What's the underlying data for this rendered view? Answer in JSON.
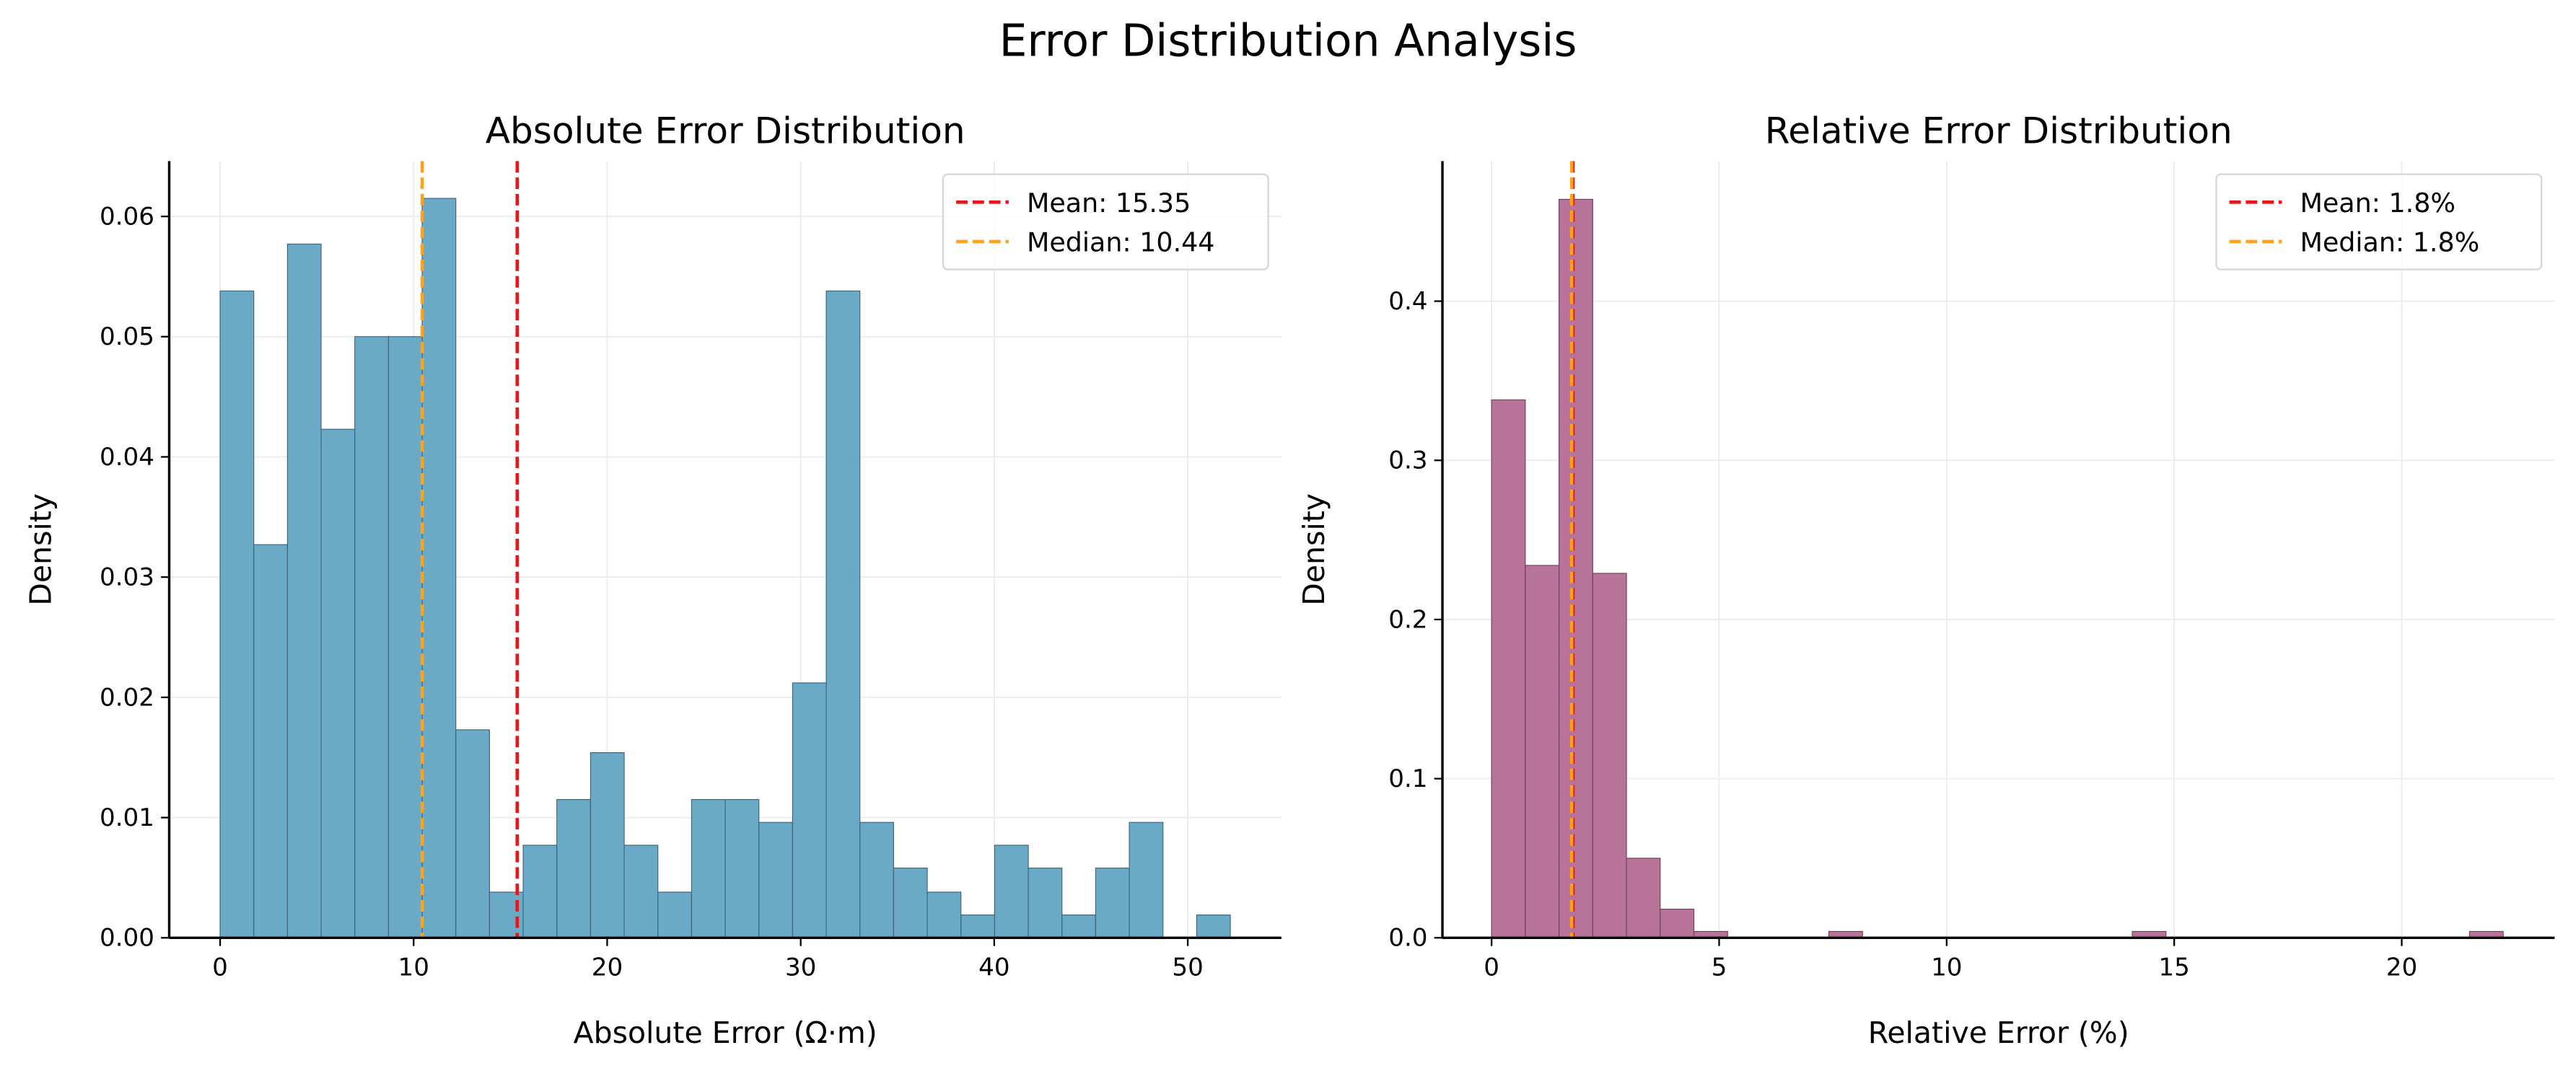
{
  "title": "Error Distribution Analysis",
  "chart_data": [
    {
      "type": "histogram",
      "title": "Absolute Error Distribution",
      "xlabel": "Absolute Error (Ω·m)",
      "ylabel": "Density",
      "bins": [
        0,
        1.74,
        3.48,
        5.22,
        6.96,
        8.7,
        10.44,
        12.18,
        13.92,
        15.66,
        17.4,
        19.14,
        20.88,
        22.62,
        24.36,
        26.1,
        27.84,
        29.58,
        31.32,
        33.06,
        34.8,
        36.54,
        38.28,
        40.02,
        41.76,
        43.5,
        45.24,
        46.98,
        48.72,
        50.46,
        52.2
      ],
      "values": [
        0.0538,
        0.0327,
        0.0577,
        0.0423,
        0.05,
        0.05,
        0.0615,
        0.0173,
        0.0038,
        0.0077,
        0.0115,
        0.0154,
        0.0077,
        0.0038,
        0.0115,
        0.0115,
        0.0096,
        0.0212,
        0.0538,
        0.0096,
        0.0058,
        0.0038,
        0.0019,
        0.0077,
        0.0058,
        0.0019,
        0.0058,
        0.0096,
        0,
        0.0019
      ],
      "color": "#6aaac6",
      "edgecolor": "#3d6478",
      "xlim": [
        -2.63,
        54.84
      ],
      "ylim": [
        0,
        0.0646
      ],
      "xticks": [
        0,
        10,
        20,
        30,
        40,
        50
      ],
      "yticks": [
        {
          "value": 0,
          "label": "0.00"
        },
        0.01,
        0.02,
        0.03,
        0.04,
        0.05,
        0.06
      ],
      "grid": true,
      "legend": "upper right",
      "vlines": [
        {
          "label": "Mean: 15.35",
          "value": 15.35,
          "color": "#e8161b"
        },
        {
          "label": "Median: 10.44",
          "value": 10.44,
          "color": "#ffa21a"
        }
      ]
    },
    {
      "type": "histogram",
      "title": "Relative Error Distribution",
      "xlabel": "Relative Error (%)",
      "ylabel": "Density",
      "bins": [
        0,
        0.741,
        1.482,
        2.223,
        2.964,
        3.705,
        4.446,
        5.187,
        5.928,
        6.669,
        7.41,
        8.151,
        8.892,
        9.633,
        10.374,
        11.115,
        11.856,
        12.597,
        13.338,
        14.079,
        14.82,
        15.561,
        16.302,
        17.043,
        17.784,
        18.525,
        19.266,
        20.007,
        20.748,
        21.489,
        22.23
      ],
      "values": [
        0.338,
        0.234,
        0.464,
        0.229,
        0.05,
        0.018,
        0.004,
        0,
        0,
        0,
        0.004,
        0,
        0,
        0,
        0,
        0,
        0,
        0,
        0,
        0.004,
        0,
        0,
        0,
        0,
        0,
        0,
        0,
        0,
        0,
        0.004
      ],
      "color": "#b87498",
      "edgecolor": "#6e3f59",
      "xlim": [
        -1.08,
        23.36
      ],
      "ylim": [
        0,
        0.488
      ],
      "xticks": [
        0,
        5,
        10,
        15,
        20
      ],
      "yticks": [
        {
          "value": 0,
          "label": "0.0"
        },
        0.1,
        0.2,
        0.3,
        0.4
      ],
      "grid": true,
      "legend": "upper right",
      "vlines": [
        {
          "label": "Mean: 1.8%",
          "value": 1.79,
          "color": "#e8161b"
        },
        {
          "label": "Median: 1.8%",
          "value": 1.76,
          "color": "#ffa21a"
        }
      ]
    }
  ]
}
